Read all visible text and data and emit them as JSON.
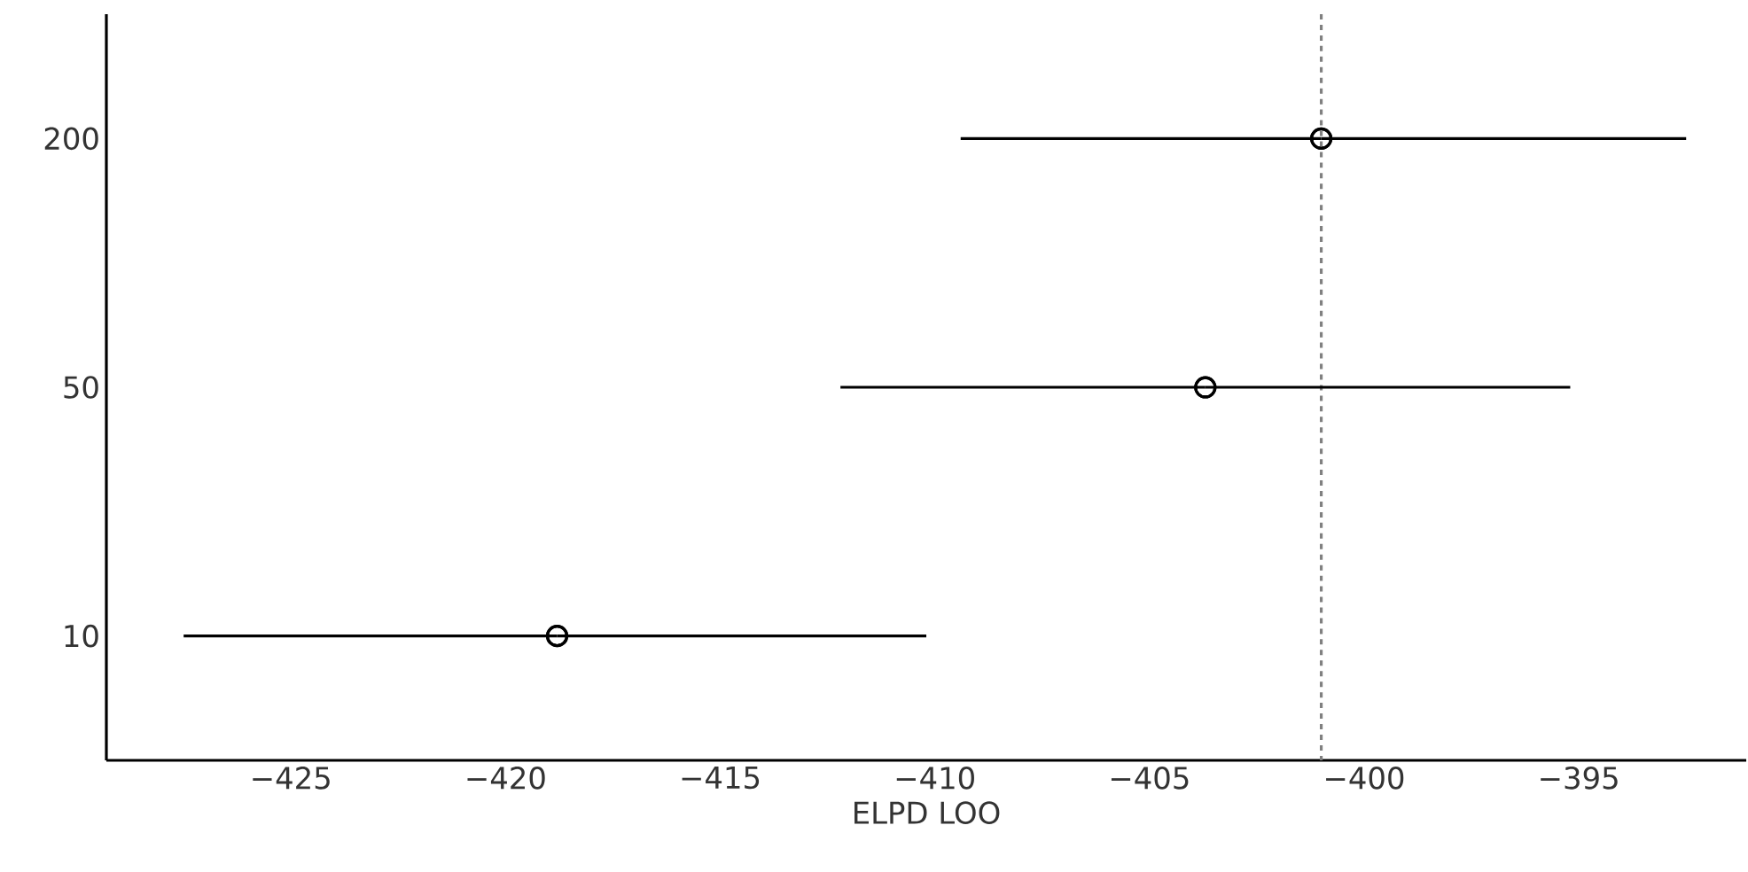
{
  "chart_data": {
    "type": "scatter",
    "orientation": "horizontal",
    "categories": [
      "200",
      "50",
      "10"
    ],
    "series": [
      {
        "color": "#000000",
        "values": [
          -401.0,
          -403.7,
          -418.8
        ],
        "errors": [
          [
            -409.4,
            -392.5
          ],
          [
            -412.2,
            -395.2
          ],
          [
            -427.5,
            -410.2
          ]
        ]
      }
    ],
    "xlabel": "ELPD LOO",
    "xlim": [
      -429.3,
      -391.1
    ],
    "xticks": [
      {
        "value": -425,
        "label": "−425"
      },
      {
        "value": -420,
        "label": "−420"
      },
      {
        "value": -415,
        "label": "−415"
      },
      {
        "value": -410,
        "label": "−410"
      },
      {
        "value": -405,
        "label": "−405"
      },
      {
        "value": -400,
        "label": "−400"
      },
      {
        "value": -395,
        "label": "−395"
      }
    ],
    "ref_lines": [
      {
        "axis": "x",
        "value": -401.0,
        "color": "#808080",
        "line_style": "dashed"
      }
    ],
    "marker": "circle",
    "grid": false
  }
}
